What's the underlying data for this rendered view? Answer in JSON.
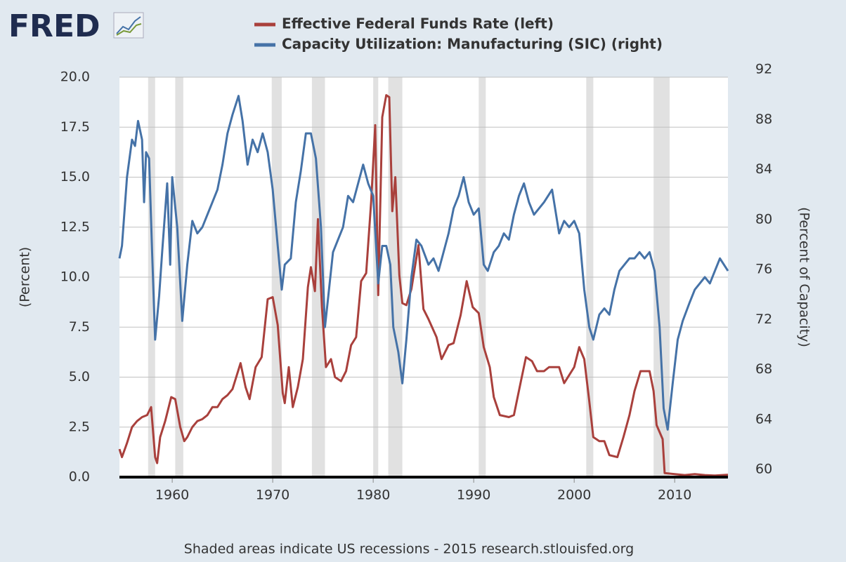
{
  "logo": "FRED",
  "chart_data": {
    "type": "line",
    "footer": "Shaded areas indicate US recessions - 2015 research.stlouisfed.org",
    "ylabel": "(Percent)",
    "y2label": "(Percent of Capacity)",
    "xlim": [
      1954.75,
      2015.3
    ],
    "xticks": [
      1960,
      1970,
      1980,
      1990,
      2000,
      2010
    ],
    "ylim": [
      0,
      20
    ],
    "yticks": [
      {
        "value": 0,
        "label": "0.0"
      },
      2.5,
      {
        "value": 5,
        "label": "5.0"
      },
      7.5,
      {
        "value": 10,
        "label": "10.0"
      },
      12.5,
      {
        "value": 15,
        "label": "15.0"
      },
      17.5,
      {
        "value": 20,
        "label": "20.0"
      }
    ],
    "y2lim": [
      60,
      92
    ],
    "y2ticks": [
      60,
      64,
      68,
      72,
      76,
      80,
      84,
      88,
      92
    ],
    "grid": true,
    "recessions": [
      [
        1957.6,
        1958.3
      ],
      [
        1960.3,
        1961.1
      ],
      [
        1969.9,
        1970.9
      ],
      [
        1973.9,
        1975.2
      ],
      [
        1980.0,
        1980.5
      ],
      [
        1981.5,
        1982.9
      ],
      [
        1990.5,
        1991.2
      ],
      [
        2001.2,
        2001.9
      ],
      [
        2007.9,
        2009.5
      ]
    ],
    "series": [
      {
        "name": "Effective Federal Funds Rate (left)",
        "color": "#a9403c",
        "axis": "y",
        "x": [
          1954.75,
          1955.0,
          1955.5,
          1956.0,
          1956.5,
          1957.0,
          1957.5,
          1957.9,
          1958.3,
          1958.5,
          1958.8,
          1959.3,
          1959.9,
          1960.3,
          1960.8,
          1961.2,
          1961.5,
          1962.0,
          1962.5,
          1963.0,
          1963.5,
          1964.0,
          1964.5,
          1965.0,
          1965.5,
          1966.0,
          1966.8,
          1967.3,
          1967.7,
          1968.3,
          1968.9,
          1969.5,
          1970.0,
          1970.5,
          1971.0,
          1971.2,
          1971.6,
          1972.0,
          1972.5,
          1973.0,
          1973.5,
          1973.8,
          1974.2,
          1974.5,
          1974.9,
          1975.3,
          1975.8,
          1976.2,
          1976.8,
          1977.3,
          1977.8,
          1978.3,
          1978.8,
          1979.3,
          1979.8,
          1980.2,
          1980.5,
          1980.9,
          1981.3,
          1981.6,
          1981.9,
          1982.2,
          1982.6,
          1982.9,
          1983.3,
          1983.8,
          1984.5,
          1985.0,
          1985.5,
          1986.3,
          1986.8,
          1987.5,
          1988.0,
          1988.7,
          1989.3,
          1989.9,
          1990.5,
          1991.0,
          1991.6,
          1992.0,
          1992.6,
          1993.5,
          1994.0,
          1994.7,
          1995.2,
          1995.8,
          1996.3,
          1997.0,
          1997.5,
          1998.5,
          1999.0,
          1999.5,
          2000.0,
          2000.5,
          2001.0,
          2001.5,
          2001.9,
          2002.5,
          2003.0,
          2003.5,
          2004.3,
          2004.9,
          2005.5,
          2006.0,
          2006.6,
          2007.5,
          2007.9,
          2008.2,
          2008.8,
          2009.0,
          2010.0,
          2011.0,
          2012.0,
          2013.0,
          2014.0,
          2015.3
        ],
        "values": [
          1.4,
          1.0,
          1.7,
          2.5,
          2.8,
          3.0,
          3.1,
          3.5,
          1.0,
          0.7,
          2.0,
          2.8,
          4.0,
          3.9,
          2.5,
          1.8,
          2.0,
          2.5,
          2.8,
          2.9,
          3.1,
          3.5,
          3.5,
          3.9,
          4.1,
          4.4,
          5.7,
          4.5,
          3.9,
          5.5,
          6.0,
          8.9,
          9.0,
          7.6,
          4.2,
          3.7,
          5.5,
          3.5,
          4.5,
          5.9,
          9.5,
          10.5,
          9.3,
          12.9,
          8.5,
          5.5,
          5.9,
          5.0,
          4.8,
          5.3,
          6.6,
          7.0,
          9.8,
          10.2,
          13.8,
          17.6,
          9.1,
          18.0,
          19.1,
          19.0,
          13.3,
          15.0,
          10.1,
          8.7,
          8.6,
          9.4,
          11.6,
          8.4,
          7.9,
          7.0,
          5.9,
          6.6,
          6.7,
          8.1,
          9.8,
          8.5,
          8.2,
          6.5,
          5.5,
          4.0,
          3.1,
          3.0,
          3.1,
          4.8,
          6.0,
          5.8,
          5.3,
          5.3,
          5.5,
          5.5,
          4.7,
          5.1,
          5.5,
          6.5,
          5.9,
          3.8,
          2.0,
          1.8,
          1.8,
          1.1,
          1.0,
          2.0,
          3.1,
          4.3,
          5.3,
          5.3,
          4.3,
          2.6,
          1.9,
          0.2,
          0.15,
          0.1,
          0.15,
          0.1,
          0.08,
          0.12
        ]
      },
      {
        "name": "Capacity Utilization: Manufacturing (SIC) (right)",
        "color": "#4572a7",
        "axis": "y2",
        "x": [
          1954.75,
          1955.0,
          1955.5,
          1956.0,
          1956.3,
          1956.6,
          1957.0,
          1957.2,
          1957.4,
          1957.7,
          1958.0,
          1958.3,
          1958.7,
          1959.0,
          1959.5,
          1959.8,
          1960.0,
          1960.5,
          1961.0,
          1961.5,
          1962.0,
          1962.5,
          1963.0,
          1963.5,
          1964.0,
          1964.5,
          1965.0,
          1965.5,
          1966.0,
          1966.6,
          1967.0,
          1967.5,
          1968.0,
          1968.5,
          1969.0,
          1969.5,
          1970.0,
          1970.5,
          1970.9,
          1971.2,
          1971.8,
          1972.3,
          1972.8,
          1973.3,
          1973.8,
          1974.3,
          1974.8,
          1975.2,
          1975.6,
          1976.0,
          1976.5,
          1977.0,
          1977.5,
          1978.0,
          1978.5,
          1979.0,
          1979.5,
          1980.0,
          1980.5,
          1980.9,
          1981.3,
          1981.7,
          1982.0,
          1982.5,
          1982.9,
          1983.3,
          1983.8,
          1984.3,
          1984.8,
          1985.5,
          1986.0,
          1986.5,
          1987.0,
          1987.5,
          1988.0,
          1988.5,
          1989.0,
          1989.5,
          1990.0,
          1990.5,
          1991.0,
          1991.4,
          1992.0,
          1992.5,
          1993.0,
          1993.5,
          1994.0,
          1994.5,
          1995.0,
          1995.5,
          1996.0,
          1996.5,
          1997.0,
          1997.8,
          1998.5,
          1999.0,
          1999.5,
          2000.0,
          2000.5,
          2001.0,
          2001.5,
          2001.9,
          2002.5,
          2003.0,
          2003.5,
          2004.0,
          2004.5,
          2005.0,
          2005.5,
          2006.0,
          2006.5,
          2007.0,
          2007.5,
          2008.0,
          2008.5,
          2008.9,
          2009.3,
          2009.8,
          2010.3,
          2010.8,
          2011.5,
          2012.0,
          2012.5,
          2013.0,
          2013.5,
          2014.0,
          2014.5,
          2014.9,
          2015.3
        ],
        "values": [
          77.5,
          78.5,
          84,
          87,
          86.5,
          88.5,
          87,
          82,
          86,
          85.5,
          78,
          71,
          74.5,
          78,
          83.5,
          77,
          84,
          80,
          72.5,
          77,
          80.5,
          79.5,
          80,
          81,
          82,
          83,
          85,
          87.5,
          89,
          90.5,
          88.5,
          85,
          87,
          86,
          87.5,
          86,
          83,
          78.5,
          75,
          77,
          77.5,
          82,
          84.5,
          87.5,
          87.5,
          85.5,
          80,
          72,
          75,
          78,
          79,
          80,
          82.5,
          82,
          83.5,
          85,
          83.5,
          82.5,
          75.5,
          78.5,
          78.5,
          77,
          72,
          70,
          67.5,
          71,
          76,
          79,
          78.5,
          77,
          77.5,
          76.5,
          78,
          79.5,
          81.5,
          82.5,
          84,
          82,
          81,
          81.5,
          77,
          76.5,
          78,
          78.5,
          79.5,
          79,
          81,
          82.5,
          83.5,
          82,
          81,
          81.5,
          82,
          83,
          79.5,
          80.5,
          80,
          80.5,
          79.5,
          75,
          72,
          71,
          73,
          73.5,
          73,
          75,
          76.5,
          77,
          77.5,
          77.5,
          78,
          77.5,
          78,
          76.5,
          72,
          65.5,
          63.8,
          67.5,
          71,
          72.5,
          74,
          75,
          75.5,
          76,
          75.5,
          76.5,
          77.5,
          77,
          76.5
        ]
      }
    ]
  }
}
